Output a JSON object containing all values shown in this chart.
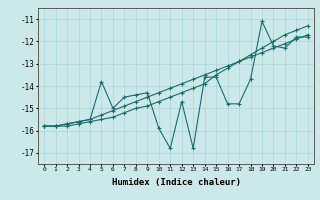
{
  "xlabel": "Humidex (Indice chaleur)",
  "background_color": "#cce9e9",
  "line_color": "#1a6b6b",
  "grid_color": "#aed4d4",
  "xlim": [
    -0.5,
    23.5
  ],
  "ylim": [
    -17.5,
    -10.5
  ],
  "yticks": [
    -17,
    -16,
    -15,
    -14,
    -13,
    -12,
    -11
  ],
  "xticks": [
    0,
    1,
    2,
    3,
    4,
    5,
    6,
    7,
    8,
    9,
    10,
    11,
    12,
    13,
    14,
    15,
    16,
    17,
    18,
    19,
    20,
    21,
    22,
    23
  ],
  "line1_x": [
    0,
    1,
    2,
    3,
    4,
    5,
    6,
    7,
    8,
    9,
    10,
    11,
    12,
    13,
    14,
    15,
    16,
    17,
    18,
    19,
    20,
    21,
    22,
    23
  ],
  "line1_y": [
    -15.8,
    -15.8,
    -15.7,
    -15.6,
    -15.5,
    -13.8,
    -15.0,
    -14.5,
    -14.4,
    -14.3,
    -15.9,
    -16.8,
    -14.7,
    -16.8,
    -13.6,
    -13.6,
    -14.8,
    -14.8,
    -13.7,
    -11.1,
    -12.2,
    -12.3,
    -11.8,
    -11.8
  ],
  "line2_x": [
    0,
    1,
    2,
    3,
    4,
    5,
    6,
    7,
    8,
    9,
    10,
    11,
    12,
    13,
    14,
    15,
    16,
    17,
    18,
    19,
    20,
    21,
    22,
    23
  ],
  "line2_y": [
    -15.8,
    -15.8,
    -15.7,
    -15.6,
    -15.5,
    -15.3,
    -15.1,
    -14.9,
    -14.7,
    -14.5,
    -14.3,
    -14.1,
    -13.9,
    -13.7,
    -13.5,
    -13.3,
    -13.1,
    -12.9,
    -12.7,
    -12.5,
    -12.3,
    -12.1,
    -11.9,
    -11.7
  ],
  "line3_x": [
    0,
    1,
    2,
    3,
    4,
    5,
    6,
    7,
    8,
    9,
    10,
    11,
    12,
    13,
    14,
    15,
    16,
    17,
    18,
    19,
    20,
    21,
    22,
    23
  ],
  "line3_y": [
    -15.8,
    -15.8,
    -15.8,
    -15.7,
    -15.6,
    -15.5,
    -15.4,
    -15.2,
    -15.0,
    -14.9,
    -14.7,
    -14.5,
    -14.3,
    -14.1,
    -13.9,
    -13.5,
    -13.2,
    -12.9,
    -12.6,
    -12.3,
    -12.0,
    -11.7,
    -11.5,
    -11.3
  ]
}
